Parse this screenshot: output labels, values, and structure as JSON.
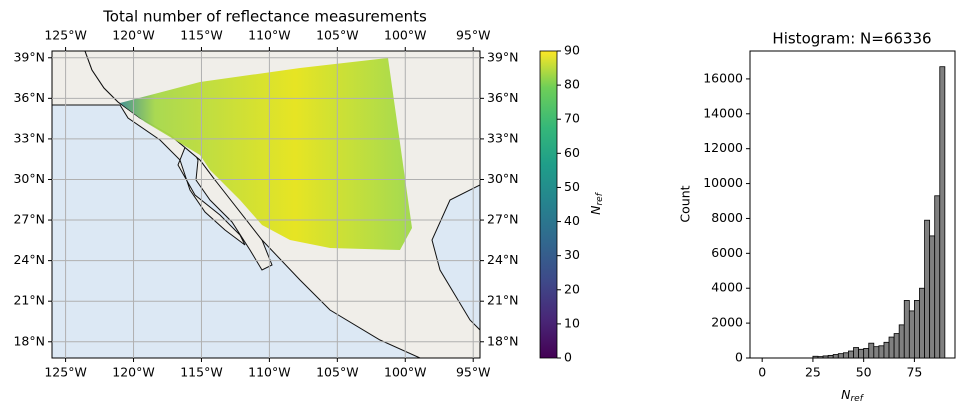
{
  "chart_data": [
    {
      "type": "map",
      "title": "Total number of reflectance measurements",
      "xlim": [
        -126,
        -94.5
      ],
      "ylim": [
        16.8,
        39.5
      ],
      "xticks": [
        {
          "value": -125,
          "label": "125°W"
        },
        {
          "value": -120,
          "label": "120°W"
        },
        {
          "value": -115,
          "label": "115°W"
        },
        {
          "value": -110,
          "label": "110°W"
        },
        {
          "value": -105,
          "label": "105°W"
        },
        {
          "value": -100,
          "label": "100°W"
        },
        {
          "value": -95,
          "label": "95°W"
        }
      ],
      "yticks": [
        {
          "value": 18,
          "label": "18°N"
        },
        {
          "value": 21,
          "label": "21°N"
        },
        {
          "value": 24,
          "label": "24°N"
        },
        {
          "value": 27,
          "label": "27°N"
        },
        {
          "value": 30,
          "label": "30°N"
        },
        {
          "value": 33,
          "label": "33°N"
        },
        {
          "value": 36,
          "label": "36°N"
        },
        {
          "value": 39,
          "label": "39°N"
        }
      ],
      "grid": true,
      "colorbar": {
        "lim": [
          0,
          90
        ],
        "ticks": [
          0,
          10,
          20,
          30,
          40,
          50,
          60,
          70,
          80,
          90
        ],
        "label": {
          "base": "N",
          "sub": "ref"
        }
      }
    },
    {
      "type": "histogram",
      "title": "Histogram: N=66336",
      "xlabel": {
        "base": "N",
        "sub": "ref"
      },
      "ylabel": "Count",
      "bins": [
        25,
        27.5,
        30,
        32.5,
        35,
        37.5,
        40,
        42.5,
        45,
        47.5,
        50,
        52.5,
        55,
        57.5,
        60,
        62.5,
        65,
        67.5,
        70,
        72.5,
        75,
        77.5,
        80,
        82.5,
        85,
        87.5,
        90
      ],
      "values": [
        100,
        80,
        120,
        150,
        200,
        250,
        300,
        400,
        600,
        500,
        550,
        850,
        650,
        700,
        900,
        1200,
        1400,
        1900,
        3300,
        2700,
        3300,
        4000,
        7900,
        7000,
        9300,
        16700
      ],
      "color": "#808080",
      "xlim": [
        -6,
        95
      ],
      "ylim": [
        0,
        17600
      ],
      "xticks": [
        0,
        25,
        50,
        75
      ],
      "yticks": [
        0,
        2000,
        4000,
        6000,
        8000,
        10000,
        12000,
        14000,
        16000
      ]
    }
  ]
}
